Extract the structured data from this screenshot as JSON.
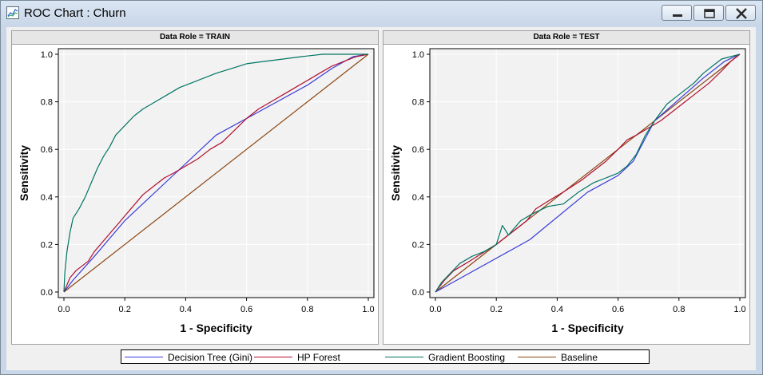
{
  "window": {
    "title": "ROC Chart : Churn"
  },
  "chart_data": [
    {
      "type": "line",
      "title": "Data Role = TRAIN",
      "xlabel": "1 - Specificity",
      "ylabel": "Sensitivity",
      "xlim": [
        0,
        1
      ],
      "ylim": [
        0,
        1
      ],
      "xticks": [
        "0.0",
        "0.2",
        "0.4",
        "0.6",
        "0.8",
        "1.0"
      ],
      "yticks": [
        "0.0",
        "0.2",
        "0.4",
        "0.6",
        "0.8",
        "1.0"
      ],
      "grid": true,
      "series": [
        {
          "name": "Decision Tree (Gini)",
          "color": "#3b3bd9",
          "points": [
            [
              0,
              0
            ],
            [
              0.03,
              0.05
            ],
            [
              0.1,
              0.15
            ],
            [
              0.2,
              0.3
            ],
            [
              0.35,
              0.48
            ],
            [
              0.5,
              0.66
            ],
            [
              0.6,
              0.73
            ],
            [
              0.7,
              0.8
            ],
            [
              0.8,
              0.87
            ],
            [
              0.88,
              0.94
            ],
            [
              0.95,
              0.99
            ],
            [
              1.0,
              1.0
            ]
          ]
        },
        {
          "name": "HP Forest",
          "color": "#b0102f",
          "points": [
            [
              0,
              0
            ],
            [
              0.01,
              0.03
            ],
            [
              0.02,
              0.06
            ],
            [
              0.04,
              0.09
            ],
            [
              0.06,
              0.11
            ],
            [
              0.08,
              0.13
            ],
            [
              0.1,
              0.17
            ],
            [
              0.12,
              0.2
            ],
            [
              0.14,
              0.23
            ],
            [
              0.16,
              0.26
            ],
            [
              0.18,
              0.29
            ],
            [
              0.2,
              0.32
            ],
            [
              0.22,
              0.35
            ],
            [
              0.24,
              0.38
            ],
            [
              0.26,
              0.41
            ],
            [
              0.28,
              0.43
            ],
            [
              0.3,
              0.45
            ],
            [
              0.33,
              0.48
            ],
            [
              0.36,
              0.5
            ],
            [
              0.4,
              0.53
            ],
            [
              0.44,
              0.56
            ],
            [
              0.48,
              0.6
            ],
            [
              0.52,
              0.63
            ],
            [
              0.56,
              0.68
            ],
            [
              0.6,
              0.73
            ],
            [
              0.64,
              0.77
            ],
            [
              0.68,
              0.8
            ],
            [
              0.72,
              0.83
            ],
            [
              0.76,
              0.86
            ],
            [
              0.8,
              0.89
            ],
            [
              0.84,
              0.92
            ],
            [
              0.88,
              0.95
            ],
            [
              0.92,
              0.97
            ],
            [
              0.96,
              0.99
            ],
            [
              1.0,
              1.0
            ]
          ]
        },
        {
          "name": "Gradient Boosting",
          "color": "#007563",
          "points": [
            [
              0,
              0
            ],
            [
              0.003,
              0.08
            ],
            [
              0.01,
              0.17
            ],
            [
              0.02,
              0.25
            ],
            [
              0.03,
              0.31
            ],
            [
              0.05,
              0.35
            ],
            [
              0.07,
              0.4
            ],
            [
              0.09,
              0.46
            ],
            [
              0.11,
              0.52
            ],
            [
              0.13,
              0.57
            ],
            [
              0.15,
              0.61
            ],
            [
              0.17,
              0.66
            ],
            [
              0.2,
              0.7
            ],
            [
              0.23,
              0.74
            ],
            [
              0.26,
              0.77
            ],
            [
              0.3,
              0.8
            ],
            [
              0.34,
              0.83
            ],
            [
              0.38,
              0.86
            ],
            [
              0.42,
              0.88
            ],
            [
              0.46,
              0.9
            ],
            [
              0.5,
              0.92
            ],
            [
              0.55,
              0.94
            ],
            [
              0.6,
              0.96
            ],
            [
              0.66,
              0.97
            ],
            [
              0.72,
              0.98
            ],
            [
              0.78,
              0.99
            ],
            [
              0.85,
              1.0
            ],
            [
              1.0,
              1.0
            ]
          ]
        },
        {
          "name": "Baseline",
          "color": "#8b4513",
          "points": [
            [
              0,
              0
            ],
            [
              1,
              1
            ]
          ]
        }
      ]
    },
    {
      "type": "line",
      "title": "Data Role = TEST",
      "xlabel": "1 - Specificity",
      "ylabel": "Sensitivity",
      "xlim": [
        0,
        1
      ],
      "ylim": [
        0,
        1
      ],
      "xticks": [
        "0.0",
        "0.2",
        "0.4",
        "0.6",
        "0.8",
        "1.0"
      ],
      "yticks": [
        "0.0",
        "0.2",
        "0.4",
        "0.6",
        "0.8",
        "1.0"
      ],
      "grid": true,
      "series": [
        {
          "name": "Decision Tree (Gini)",
          "color": "#3b3bd9",
          "points": [
            [
              0,
              0
            ],
            [
              0.31,
              0.22
            ],
            [
              0.5,
              0.42
            ],
            [
              0.6,
              0.49
            ],
            [
              0.65,
              0.55
            ],
            [
              0.72,
              0.72
            ],
            [
              0.8,
              0.81
            ],
            [
              0.88,
              0.9
            ],
            [
              0.95,
              0.97
            ],
            [
              1.0,
              1.0
            ]
          ]
        },
        {
          "name": "HP Forest",
          "color": "#b0102f",
          "points": [
            [
              0,
              0
            ],
            [
              0.03,
              0.05
            ],
            [
              0.06,
              0.09
            ],
            [
              0.1,
              0.12
            ],
            [
              0.15,
              0.16
            ],
            [
              0.2,
              0.2
            ],
            [
              0.25,
              0.25
            ],
            [
              0.3,
              0.3
            ],
            [
              0.33,
              0.35
            ],
            [
              0.38,
              0.39
            ],
            [
              0.42,
              0.42
            ],
            [
              0.48,
              0.47
            ],
            [
              0.52,
              0.51
            ],
            [
              0.56,
              0.55
            ],
            [
              0.6,
              0.6
            ],
            [
              0.63,
              0.64
            ],
            [
              0.66,
              0.66
            ],
            [
              0.7,
              0.69
            ],
            [
              0.74,
              0.72
            ],
            [
              0.78,
              0.76
            ],
            [
              0.82,
              0.8
            ],
            [
              0.86,
              0.84
            ],
            [
              0.9,
              0.88
            ],
            [
              0.94,
              0.93
            ],
            [
              0.97,
              0.97
            ],
            [
              1.0,
              1.0
            ]
          ]
        },
        {
          "name": "Gradient Boosting",
          "color": "#007563",
          "points": [
            [
              0,
              0
            ],
            [
              0.02,
              0.04
            ],
            [
              0.05,
              0.08
            ],
            [
              0.08,
              0.12
            ],
            [
              0.12,
              0.15
            ],
            [
              0.16,
              0.17
            ],
            [
              0.2,
              0.2
            ],
            [
              0.22,
              0.28
            ],
            [
              0.24,
              0.24
            ],
            [
              0.28,
              0.3
            ],
            [
              0.32,
              0.33
            ],
            [
              0.37,
              0.36
            ],
            [
              0.42,
              0.37
            ],
            [
              0.47,
              0.42
            ],
            [
              0.52,
              0.46
            ],
            [
              0.56,
              0.48
            ],
            [
              0.6,
              0.5
            ],
            [
              0.63,
              0.53
            ],
            [
              0.66,
              0.58
            ],
            [
              0.69,
              0.66
            ],
            [
              0.72,
              0.72
            ],
            [
              0.76,
              0.79
            ],
            [
              0.8,
              0.83
            ],
            [
              0.85,
              0.88
            ],
            [
              0.88,
              0.92
            ],
            [
              0.91,
              0.95
            ],
            [
              0.94,
              0.98
            ],
            [
              1.0,
              1.0
            ]
          ]
        },
        {
          "name": "Baseline",
          "color": "#8b4513",
          "points": [
            [
              0,
              0
            ],
            [
              1,
              1
            ]
          ]
        }
      ]
    }
  ],
  "legend": [
    {
      "label": "Decision Tree (Gini)",
      "color": "#3b3bd9"
    },
    {
      "label": "HP Forest",
      "color": "#b0102f"
    },
    {
      "label": "Gradient Boosting",
      "color": "#007563"
    },
    {
      "label": "Baseline",
      "color": "#8b4513"
    }
  ]
}
